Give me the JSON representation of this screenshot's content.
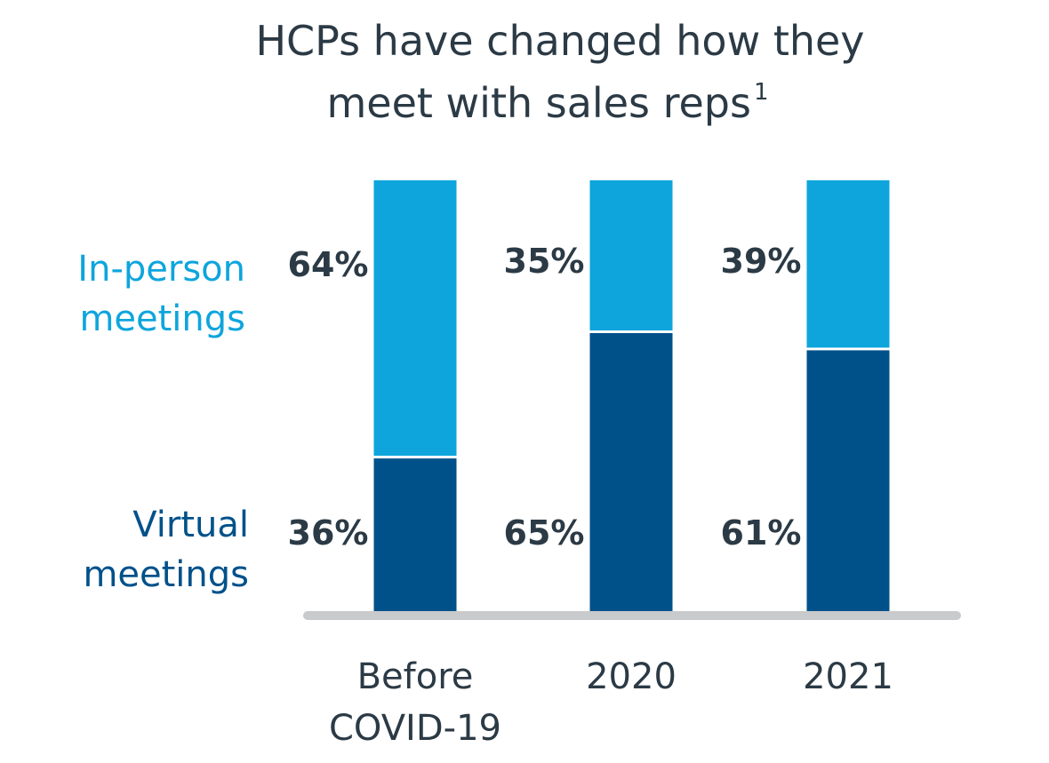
{
  "chart_data": {
    "type": "bar",
    "stacked": true,
    "title": "HCPs have changed how they meet with sales reps",
    "title_footnote": "1",
    "categories": [
      "Before COVID-19",
      "2020",
      "2021"
    ],
    "series": [
      {
        "name": "Virtual meetings",
        "color": "#00518a",
        "values": [
          36,
          65,
          61
        ],
        "labels": [
          "36%",
          "65%",
          "61%"
        ]
      },
      {
        "name": "In-person meetings",
        "color": "#0ea5dd",
        "values": [
          64,
          35,
          39
        ],
        "labels": [
          "64%",
          "35%",
          "39%"
        ]
      }
    ],
    "ylim": [
      0,
      100
    ],
    "xlabel": "",
    "ylabel": "",
    "grid": false,
    "legend_position": "left"
  },
  "colors": {
    "text": "#2b3a45",
    "baseline": "#c9cacc",
    "divider": "#ffffff"
  }
}
